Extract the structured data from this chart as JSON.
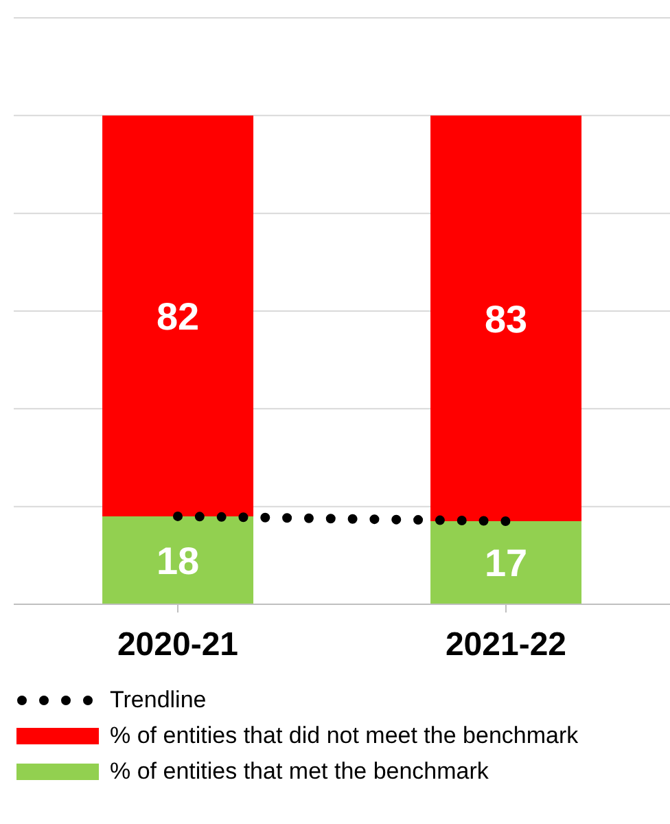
{
  "chart_data": {
    "type": "bar",
    "stacked": true,
    "categories": [
      "2020-21",
      "2021-22"
    ],
    "series": [
      {
        "name": "% of entities that met the benchmark",
        "color": "#92d050",
        "values": [
          18,
          17
        ],
        "value_labels": [
          "18",
          "17"
        ]
      },
      {
        "name": "% of entities that did not meet the benchmark",
        "color": "#ff0000",
        "values": [
          82,
          83
        ],
        "value_labels": [
          "82",
          "83"
        ]
      },
      {
        "name": "Trendline",
        "type": "line",
        "color": "#000000",
        "values": [
          18,
          17
        ],
        "line_style": "dotted",
        "marker": "none"
      }
    ],
    "ylim": [
      0,
      120
    ],
    "yticks": [
      {
        "value": 0,
        "label": null
      },
      {
        "value": 20,
        "label": null
      },
      {
        "value": 40,
        "label": null
      },
      {
        "value": 60,
        "label": null
      },
      {
        "value": 80,
        "label": null
      },
      {
        "value": 100,
        "label": null
      },
      {
        "value": 120,
        "label": null
      }
    ],
    "tick_labels": "x",
    "grid": "y",
    "legend": "bottom"
  }
}
